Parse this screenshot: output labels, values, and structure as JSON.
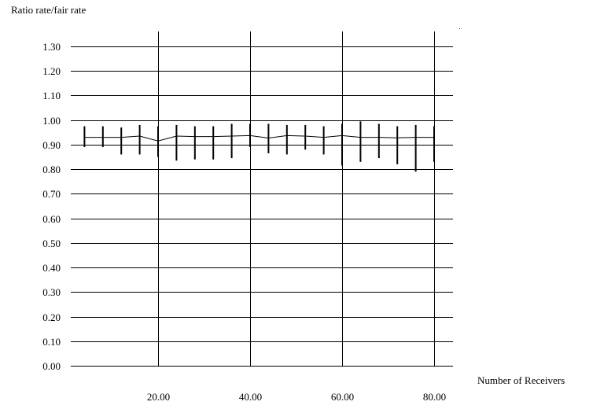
{
  "chart_data": {
    "type": "line",
    "ylabel": "Ratio rate/fair rate",
    "xlabel": "Number of Receivers",
    "xlim": [
      0,
      80
    ],
    "ylim": [
      0,
      1.3
    ],
    "grid": "horizontal and vertical",
    "x_ticks": [
      "20.00",
      "40.00",
      "60.00",
      "80.00"
    ],
    "y_ticks": [
      "0.00",
      "0.10",
      "0.20",
      "0.30",
      "0.40",
      "0.50",
      "0.60",
      "0.70",
      "0.80",
      "0.90",
      "1.00",
      "1.10",
      "1.20",
      "1.30"
    ],
    "series": [
      {
        "x": [
          4,
          8,
          12,
          16,
          20,
          24,
          28,
          32,
          36,
          40,
          44,
          48,
          52,
          56,
          60,
          64,
          68,
          72,
          76,
          80
        ],
        "y": [
          0.93,
          0.93,
          0.93,
          0.935,
          0.915,
          0.935,
          0.933,
          0.933,
          0.935,
          0.937,
          0.927,
          0.937,
          0.935,
          0.93,
          0.937,
          0.93,
          0.93,
          0.928,
          0.93,
          0.93
        ],
        "low": [
          0.89,
          0.89,
          0.86,
          0.86,
          0.85,
          0.835,
          0.84,
          0.84,
          0.845,
          0.89,
          0.865,
          0.86,
          0.88,
          0.86,
          0.815,
          0.83,
          0.845,
          0.82,
          0.79,
          0.83
        ],
        "high": [
          0.975,
          0.975,
          0.97,
          0.98,
          0.975,
          0.98,
          0.975,
          0.975,
          0.985,
          0.985,
          0.985,
          0.98,
          0.98,
          0.975,
          0.985,
          0.995,
          0.985,
          0.975,
          0.98,
          0.975
        ]
      }
    ]
  }
}
